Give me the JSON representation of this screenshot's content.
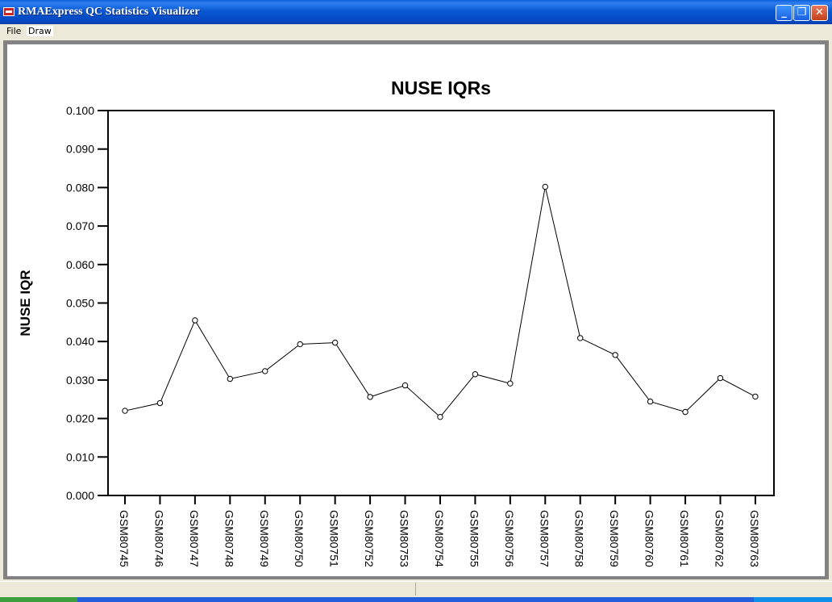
{
  "window": {
    "title": "RMAExpress QC Statistics Visualizer",
    "icon": "rma-app-icon",
    "controls": {
      "minimize": "_",
      "maximize": "❐",
      "close": "✕"
    }
  },
  "menu": [
    "File",
    "Draw"
  ],
  "colors": {
    "line": "#000000",
    "axis": "#000000",
    "plot_bg": "#ffffff",
    "titlebar": "#0a5fd8"
  },
  "chart_data": {
    "type": "line",
    "title": "NUSE IQRs",
    "xlabel": "",
    "ylabel": "NUSE IQR",
    "ylim": [
      0.0,
      0.1
    ],
    "yticks": [
      "0.000",
      "0.010",
      "0.020",
      "0.030",
      "0.040",
      "0.050",
      "0.060",
      "0.070",
      "0.080",
      "0.090",
      "0.100"
    ],
    "categories": [
      "GSM80745",
      "GSM80746",
      "GSM80747",
      "GSM80748",
      "GSM80749",
      "GSM80750",
      "GSM80751",
      "GSM80752",
      "GSM80753",
      "GSM80754",
      "GSM80755",
      "GSM80756",
      "GSM80757",
      "GSM80758",
      "GSM80759",
      "GSM80760",
      "GSM80761",
      "GSM80762",
      "GSM80763"
    ],
    "values": [
      0.022,
      0.024,
      0.0455,
      0.0303,
      0.0323,
      0.0393,
      0.0397,
      0.0256,
      0.0286,
      0.0204,
      0.0315,
      0.0291,
      0.0802,
      0.0409,
      0.0365,
      0.0244,
      0.0217,
      0.0305,
      0.0257
    ],
    "grid": false,
    "markers": "open-circle"
  }
}
